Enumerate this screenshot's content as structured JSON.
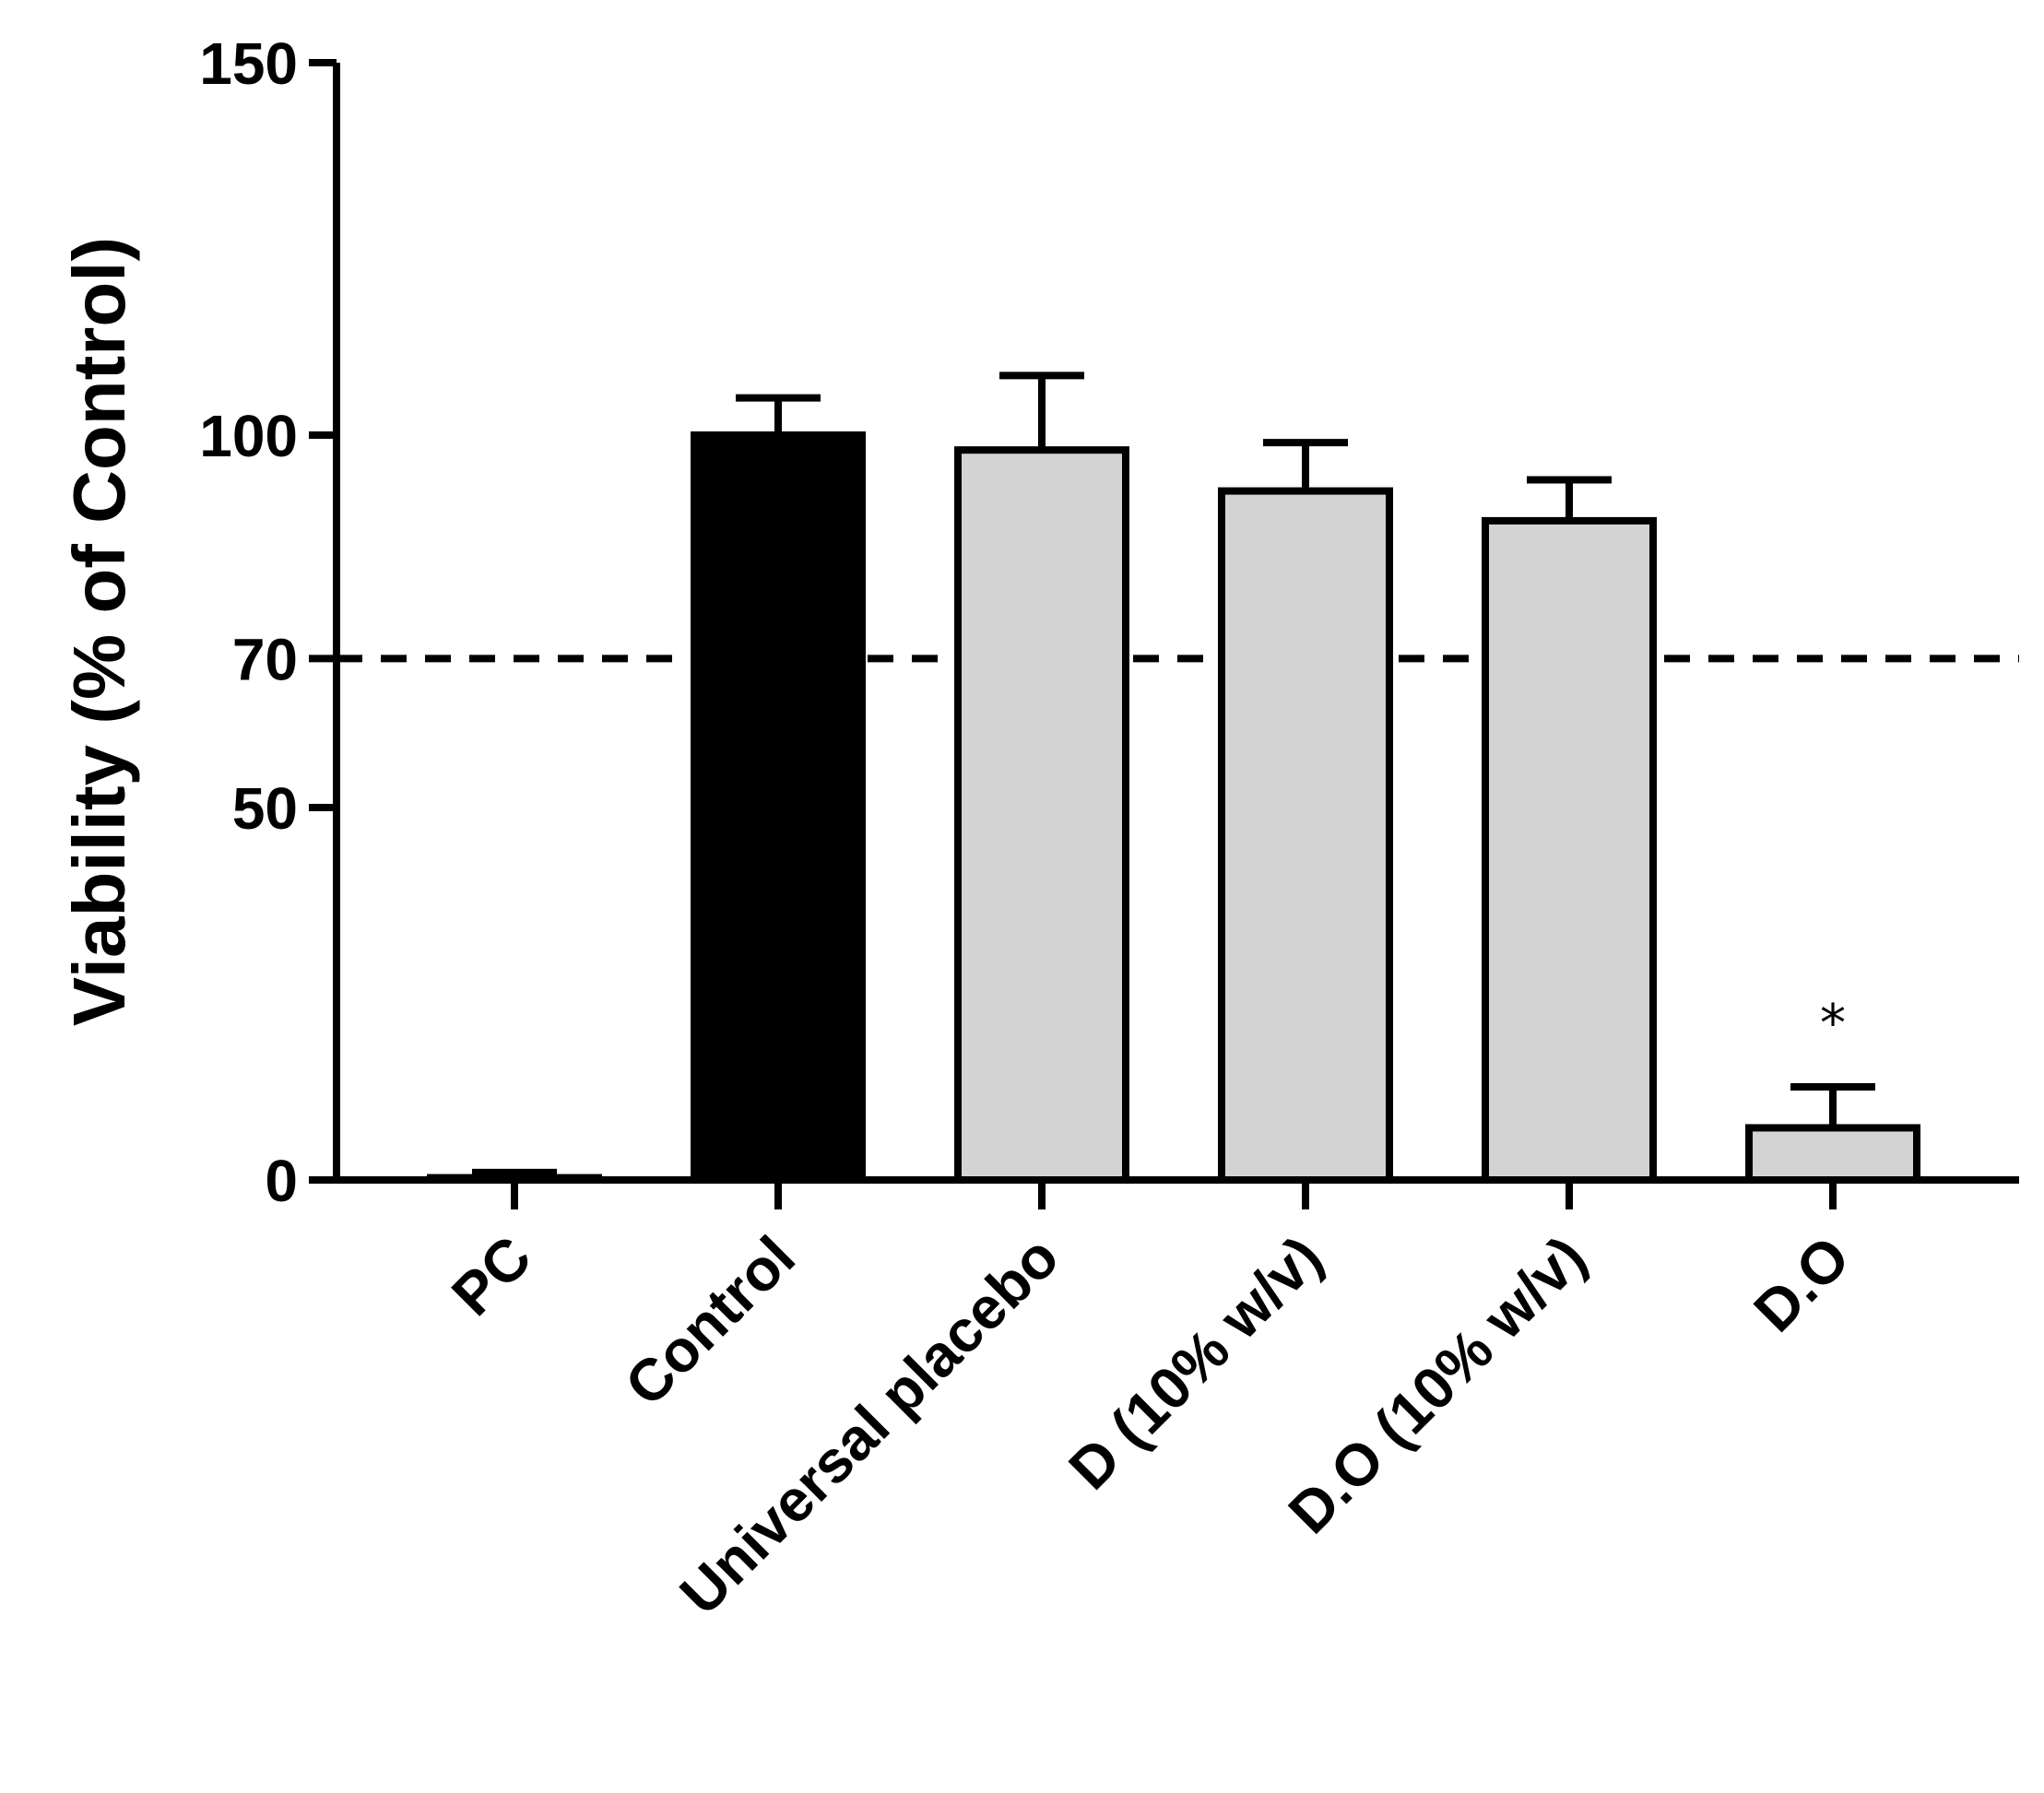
{
  "chart_data": {
    "type": "bar",
    "ylabel": "Viability (% of Control)",
    "ylim": [
      0,
      150
    ],
    "yticks": [
      0,
      50,
      70,
      100,
      150
    ],
    "categories": [
      "PC",
      "Control",
      "Universal placebo",
      "D (10% w/v)",
      "D.O (10% w/v)",
      "D.O"
    ],
    "values": [
      0.3,
      100,
      98,
      92.5,
      88.5,
      7
    ],
    "errors": [
      0.7,
      5,
      10,
      6.5,
      5.5,
      5.5
    ],
    "colors": [
      "#000000",
      "#000000",
      "#d3d3d3",
      "#d3d3d3",
      "#d3d3d3",
      "#d3d3d3"
    ],
    "reference_line": {
      "y": 70,
      "style": "dashed"
    },
    "annotations": [
      {
        "category": "D.O",
        "text": "*"
      }
    ]
  }
}
